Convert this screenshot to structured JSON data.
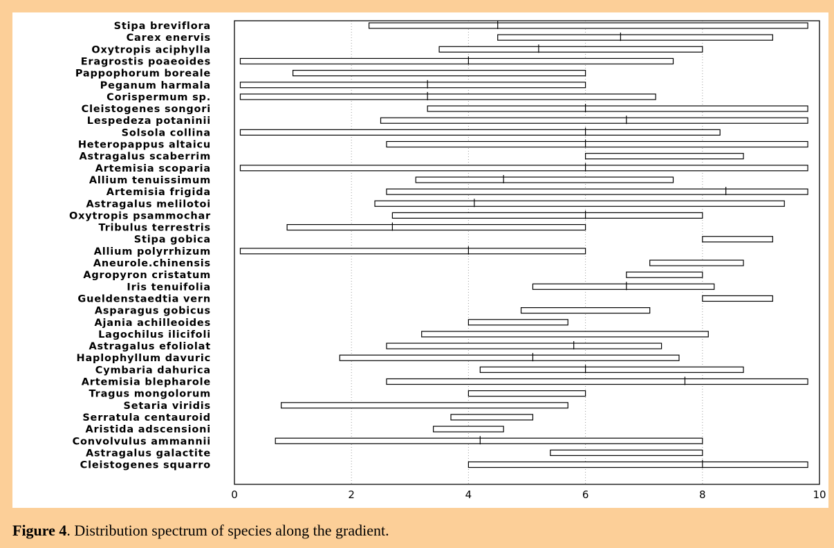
{
  "figure": {
    "caption_label": "Figure 4",
    "caption_text": ". Distribution spectrum of species along the gradient."
  },
  "colors": {
    "background": "#fccf98",
    "panel": "#ffffff",
    "ink": "#000000"
  },
  "chart_data": {
    "type": "range-bar",
    "title": "",
    "xlabel": "",
    "ylabel": "",
    "xlim": [
      0,
      10
    ],
    "x_ticks": [
      0,
      2,
      4,
      6,
      8,
      10
    ],
    "grid": "vertical dotted at 2, 4, 6, 8",
    "species": [
      {
        "name": "Stipa breviflora",
        "min": 2.3,
        "max": 9.8,
        "mid": 4.5
      },
      {
        "name": "Carex enervis",
        "min": 4.5,
        "max": 9.2,
        "mid": 6.6
      },
      {
        "name": "Oxytropis aciphylla",
        "min": 3.5,
        "max": 8.0,
        "mid": 5.2
      },
      {
        "name": "Eragrostis poaeoides",
        "min": 0.1,
        "max": 7.5,
        "mid": 4.0
      },
      {
        "name": "Pappophorum boreale",
        "min": 1.0,
        "max": 6.0,
        "mid": null
      },
      {
        "name": "Peganum harmala",
        "min": 0.1,
        "max": 6.0,
        "mid": 3.3
      },
      {
        "name": "Corispermum sp.",
        "min": 0.1,
        "max": 7.2,
        "mid": 3.3
      },
      {
        "name": "Cleistogenes songori",
        "min": 3.3,
        "max": 9.8,
        "mid": 6.0
      },
      {
        "name": "Lespedeza potaninii",
        "min": 2.5,
        "max": 9.8,
        "mid": 6.7
      },
      {
        "name": "Solsola collina",
        "min": 0.1,
        "max": 8.3,
        "mid": 6.0
      },
      {
        "name": "Heteropappus altaicu",
        "min": 2.6,
        "max": 9.8,
        "mid": 6.0
      },
      {
        "name": "Astragalus scaberrim",
        "min": 6.0,
        "max": 8.7,
        "mid": null
      },
      {
        "name": "Artemisia scoparia",
        "min": 0.1,
        "max": 9.8,
        "mid": 6.0
      },
      {
        "name": "Allium tenuissimum",
        "min": 3.1,
        "max": 7.5,
        "mid": 4.6
      },
      {
        "name": "Artemisia frigida",
        "min": 2.6,
        "max": 9.8,
        "mid": 8.4
      },
      {
        "name": "Astragalus melilotoi",
        "min": 2.4,
        "max": 9.4,
        "mid": 4.1
      },
      {
        "name": "Oxytropis psammochar",
        "min": 2.7,
        "max": 8.0,
        "mid": 6.0
      },
      {
        "name": "Tribulus terrestris",
        "min": 0.9,
        "max": 6.0,
        "mid": 2.7
      },
      {
        "name": "Stipa gobica",
        "min": 8.0,
        "max": 9.2,
        "mid": null
      },
      {
        "name": "Allium polyrrhizum",
        "min": 0.1,
        "max": 6.0,
        "mid": 4.0
      },
      {
        "name": "Aneurole.chinensis",
        "min": 7.1,
        "max": 8.7,
        "mid": null
      },
      {
        "name": "Agropyron cristatum",
        "min": 6.7,
        "max": 8.0,
        "mid": null
      },
      {
        "name": "Iris tenuifolia",
        "min": 5.1,
        "max": 8.2,
        "mid": 6.7
      },
      {
        "name": "Gueldenstaedtia vern",
        "min": 8.0,
        "max": 9.2,
        "mid": null
      },
      {
        "name": "Asparagus gobicus",
        "min": 4.9,
        "max": 7.1,
        "mid": null
      },
      {
        "name": "Ajania achilleoides",
        "min": 4.0,
        "max": 5.7,
        "mid": null
      },
      {
        "name": "Lagochilus ilicifoli",
        "min": 3.2,
        "max": 8.1,
        "mid": null
      },
      {
        "name": "Astragalus efoliolat",
        "min": 2.6,
        "max": 7.3,
        "mid": 5.8
      },
      {
        "name": "Haplophyllum davuric",
        "min": 1.8,
        "max": 7.6,
        "mid": 5.1
      },
      {
        "name": "Cymbaria dahurica",
        "min": 4.2,
        "max": 8.7,
        "mid": 6.0
      },
      {
        "name": "Artemisia blepharole",
        "min": 2.6,
        "max": 9.8,
        "mid": 7.7
      },
      {
        "name": "Tragus mongolorum",
        "min": 4.0,
        "max": 6.0,
        "mid": null
      },
      {
        "name": "Setaria viridis",
        "min": 0.8,
        "max": 5.7,
        "mid": null
      },
      {
        "name": "Serratula centauroid",
        "min": 3.7,
        "max": 5.1,
        "mid": null
      },
      {
        "name": "Aristida adscensioni",
        "min": 3.4,
        "max": 4.6,
        "mid": null
      },
      {
        "name": "Convolvulus ammannii",
        "min": 0.7,
        "max": 8.0,
        "mid": 4.2
      },
      {
        "name": "Astragalus galactite",
        "min": 5.4,
        "max": 8.0,
        "mid": null
      },
      {
        "name": "Cleistogenes squarro",
        "min": 4.0,
        "max": 9.8,
        "mid": 8.0
      }
    ]
  }
}
